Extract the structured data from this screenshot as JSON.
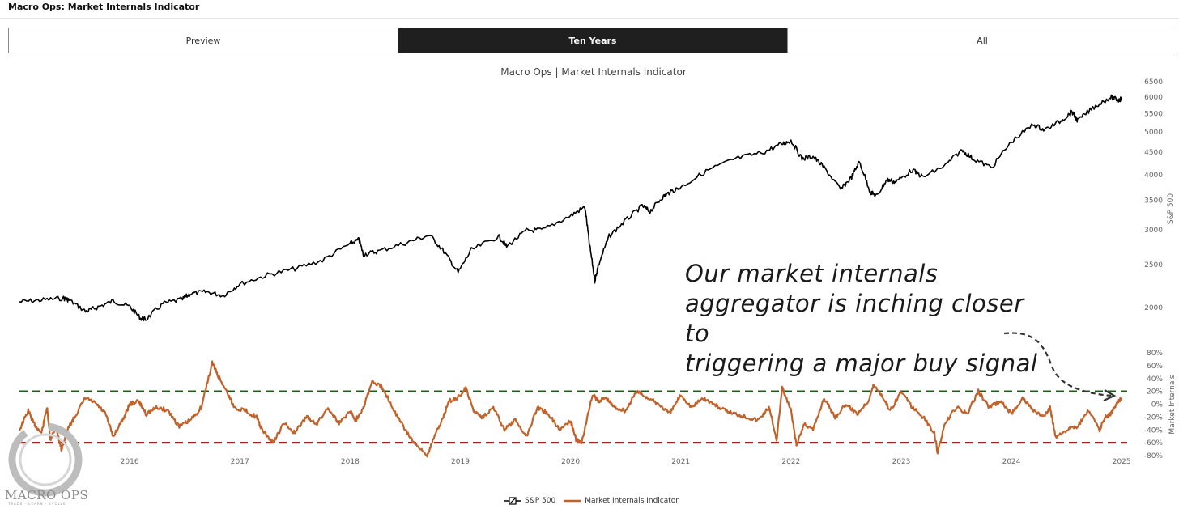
{
  "app": {
    "title": "Macro Ops: Market Internals Indicator"
  },
  "tabs": [
    {
      "label": "Preview",
      "active": false
    },
    {
      "label": "Ten Years",
      "active": true
    },
    {
      "label": "All",
      "active": false
    }
  ],
  "annotation": {
    "lines": [
      "Our market internals",
      "aggregator is inching closer to",
      "triggering a major buy signal"
    ]
  },
  "logo": {
    "text": "MACRO OPS",
    "tagline": "TRADE · LEARN · EVOLVE"
  },
  "colors": {
    "sp500": "#000000",
    "internals": "#c0622a",
    "upper_threshold": "#1e5c1e",
    "lower_threshold": "#a52020",
    "axis_text": "#666666"
  },
  "chart_data": {
    "type": "line",
    "title": "Macro Ops | Market Internals Indicator",
    "x_ticks": [
      "2016",
      "2017",
      "2018",
      "2019",
      "2020",
      "2021",
      "2022",
      "2023",
      "2024",
      "2025"
    ],
    "x_range": [
      2015.0,
      2025.05
    ],
    "legend": {
      "position": "bottom-center",
      "entries": [
        "S&P 500",
        "Market Internals Indicator"
      ]
    },
    "panels": [
      {
        "name": "S&P 500",
        "ylabel": "S&P 500",
        "scale": "log",
        "ylim": [
          1800,
          6500
        ],
        "y_ticks": [
          2000,
          2500,
          3000,
          3500,
          4000,
          4500,
          5000,
          5500,
          6000,
          6500
        ],
        "series": [
          {
            "name": "S&P 500",
            "x": [
              2015.0,
              2015.2,
              2015.4,
              2015.45,
              2015.6,
              2015.7,
              2015.85,
              2016.0,
              2016.1,
              2016.15,
              2016.3,
              2016.48,
              2016.55,
              2016.7,
              2016.85,
              2017.0,
              2017.25,
              2017.5,
              2017.75,
              2018.0,
              2018.08,
              2018.12,
              2018.25,
              2018.5,
              2018.72,
              2018.85,
              2018.98,
              2019.1,
              2019.35,
              2019.42,
              2019.6,
              2019.75,
              2020.0,
              2020.13,
              2020.17,
              2020.22,
              2020.25,
              2020.35,
              2020.5,
              2020.65,
              2020.72,
              2020.83,
              2020.9,
              2021.0,
              2021.25,
              2021.5,
              2021.75,
              2021.92,
              2022.0,
              2022.1,
              2022.2,
              2022.3,
              2022.45,
              2022.55,
              2022.62,
              2022.72,
              2022.78,
              2022.87,
              2022.95,
              2023.1,
              2023.2,
              2023.4,
              2023.55,
              2023.65,
              2023.82,
              2024.0,
              2024.2,
              2024.3,
              2024.45,
              2024.55,
              2024.6,
              2024.75,
              2024.9,
              2024.97,
              2025.0
            ],
            "y": [
              2060,
              2080,
              2100,
              2080,
              1960,
              2000,
              2070,
              2010,
              1890,
              1880,
              2040,
              2090,
              2150,
              2170,
              2130,
              2260,
              2370,
              2450,
              2560,
              2790,
              2850,
              2640,
              2680,
              2800,
              2920,
              2680,
              2400,
              2700,
              2900,
              2750,
              2990,
              3000,
              3230,
              3380,
              2800,
              2300,
              2480,
              2900,
              3150,
              3400,
              3300,
              3550,
              3650,
              3750,
              4100,
              4350,
              4500,
              4700,
              4780,
              4350,
              4400,
              4150,
              3700,
              3950,
              4280,
              3650,
              3580,
              3900,
              3850,
              4100,
              3950,
              4200,
              4550,
              4350,
              4150,
              4750,
              5200,
              5050,
              5300,
              5550,
              5300,
              5700,
              6000,
              5900,
              5950
            ]
          }
        ]
      },
      {
        "name": "Market Internals",
        "ylabel": "Market Internals",
        "ylim": [
          -80,
          80
        ],
        "y_ticks": [
          "80%",
          "60%",
          "40%",
          "20%",
          "0%",
          "-20%",
          "-40%",
          "-60%",
          "-80%"
        ],
        "thresholds": [
          20,
          -60
        ],
        "series": [
          {
            "name": "Market Internals Indicator",
            "x": [
              2015.0,
              2015.08,
              2015.13,
              2015.2,
              2015.25,
              2015.28,
              2015.33,
              2015.38,
              2015.45,
              2015.5,
              2015.6,
              2015.7,
              2015.78,
              2015.85,
              2015.95,
              2016.0,
              2016.08,
              2016.15,
              2016.25,
              2016.35,
              2016.45,
              2016.55,
              2016.65,
              2016.75,
              2016.8,
              2016.88,
              2016.95,
              2017.05,
              2017.15,
              2017.2,
              2017.3,
              2017.4,
              2017.5,
              2017.6,
              2017.7,
              2017.8,
              2017.9,
              2018.0,
              2018.05,
              2018.12,
              2018.2,
              2018.3,
              2018.4,
              2018.5,
              2018.6,
              2018.7,
              2018.75,
              2018.82,
              2018.9,
              2018.98,
              2019.05,
              2019.12,
              2019.2,
              2019.3,
              2019.4,
              2019.5,
              2019.6,
              2019.7,
              2019.8,
              2019.9,
              2020.0,
              2020.05,
              2020.1,
              2020.2,
              2020.25,
              2020.32,
              2020.4,
              2020.5,
              2020.6,
              2020.7,
              2020.8,
              2020.9,
              2021.0,
              2021.1,
              2021.2,
              2021.3,
              2021.4,
              2021.5,
              2021.6,
              2021.7,
              2021.8,
              2021.87,
              2021.92,
              2022.0,
              2022.05,
              2022.12,
              2022.2,
              2022.3,
              2022.4,
              2022.5,
              2022.6,
              2022.7,
              2022.75,
              2022.82,
              2022.9,
              2023.0,
              2023.1,
              2023.2,
              2023.3,
              2023.33,
              2023.4,
              2023.5,
              2023.6,
              2023.7,
              2023.8,
              2023.9,
              2024.0,
              2024.1,
              2024.2,
              2024.3,
              2024.35,
              2024.4,
              2024.5,
              2024.6,
              2024.7,
              2024.8,
              2024.85,
              2024.9,
              2024.95,
              2025.0
            ],
            "y": [
              -40,
              -10,
              -30,
              -45,
              -5,
              -55,
              -35,
              -70,
              -35,
              -20,
              10,
              0,
              -15,
              -50,
              -20,
              0,
              5,
              -15,
              -5,
              -10,
              -35,
              -25,
              -5,
              65,
              45,
              20,
              -5,
              -10,
              -20,
              -40,
              -60,
              -30,
              -45,
              -20,
              -30,
              -5,
              -30,
              -10,
              -25,
              -5,
              35,
              25,
              -10,
              -40,
              -65,
              -80,
              -55,
              -30,
              5,
              10,
              25,
              -10,
              -20,
              -5,
              -40,
              -25,
              -50,
              -5,
              -15,
              -40,
              -25,
              -55,
              -60,
              15,
              5,
              10,
              -5,
              -10,
              20,
              10,
              0,
              -15,
              15,
              -5,
              10,
              0,
              -10,
              -15,
              -20,
              -25,
              -5,
              -55,
              25,
              -10,
              -65,
              -30,
              -40,
              10,
              -20,
              0,
              -15,
              5,
              30,
              15,
              -10,
              20,
              -5,
              -20,
              -45,
              -75,
              -30,
              -5,
              -15,
              20,
              -5,
              5,
              -15,
              10,
              -10,
              -20,
              -5,
              -50,
              -40,
              -35,
              -10,
              -40,
              -20,
              -15,
              0,
              10
            ]
          }
        ]
      }
    ]
  }
}
